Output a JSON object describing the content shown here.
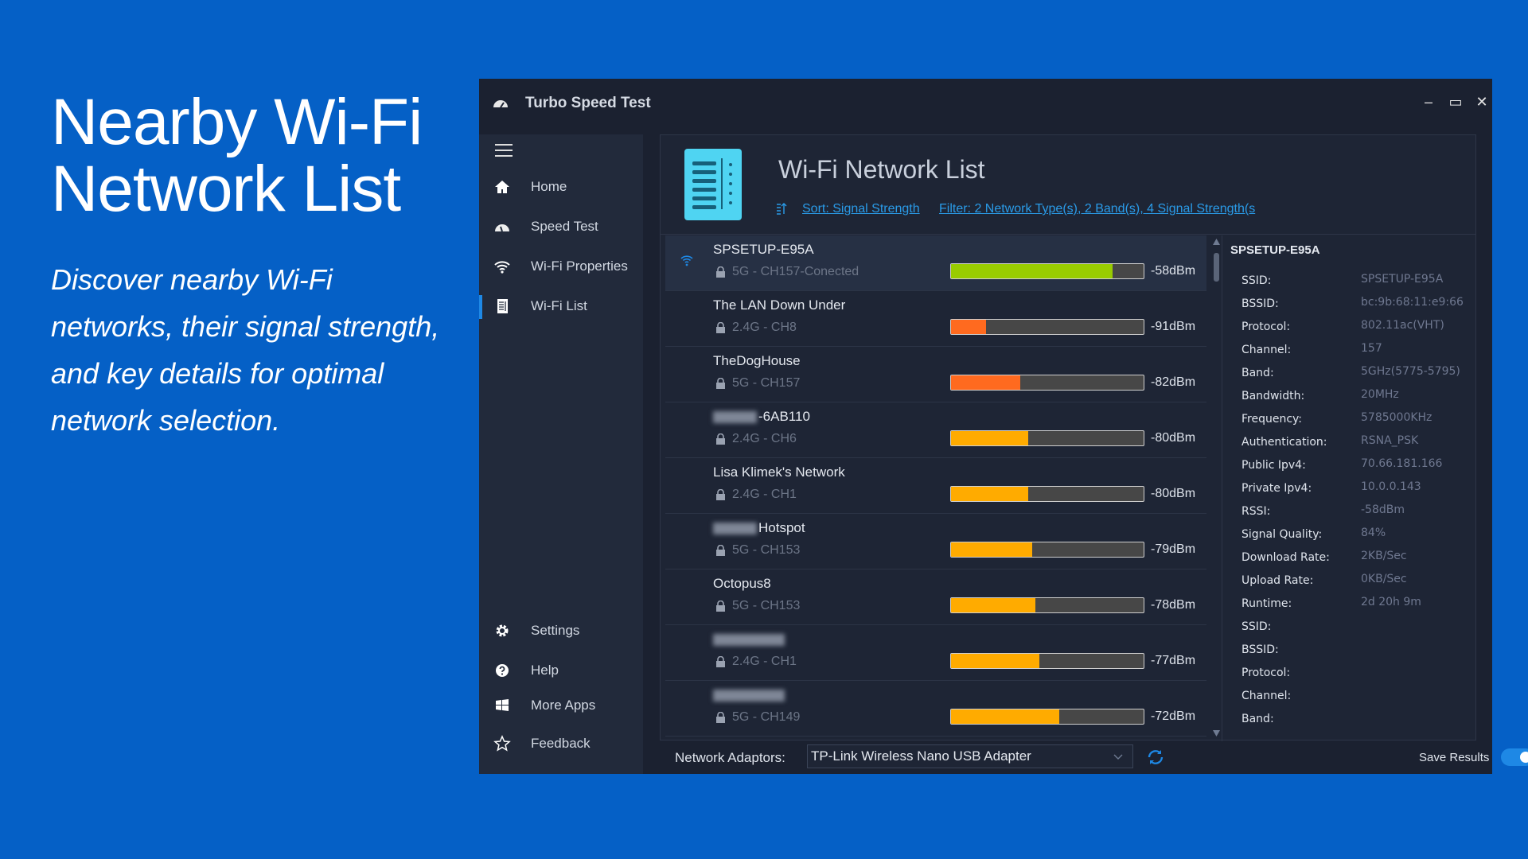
{
  "promo": {
    "title_line1": "Nearby Wi-Fi",
    "title_line2": "Network List",
    "subtitle": "Discover nearby Wi-Fi networks, their signal strength, and key details for optimal network selection."
  },
  "window": {
    "title": "Turbo Speed Test",
    "minimize": "–",
    "maximize": "▭",
    "close": "✕"
  },
  "sidebar": {
    "items": [
      {
        "label": "Home",
        "icon": "home-icon"
      },
      {
        "label": "Speed Test",
        "icon": "speedometer-icon"
      },
      {
        "label": "Wi-Fi Properties",
        "icon": "wifi-icon"
      },
      {
        "label": "Wi-Fi List",
        "icon": "list-icon",
        "active": true
      }
    ],
    "bottom_items": [
      {
        "label": "Settings",
        "icon": "gear-icon"
      },
      {
        "label": "Help",
        "icon": "help-icon"
      },
      {
        "label": "More Apps",
        "icon": "windows-icon"
      },
      {
        "label": "Feedback",
        "icon": "star-icon"
      }
    ]
  },
  "header": {
    "title": "Wi-Fi Network List",
    "sort_label": "Sort: Signal Strength",
    "filter_label": "Filter: 2 Network Type(s), 2 Band(s), 4 Signal Strength(s"
  },
  "colors": {
    "strong": "#99cc00",
    "weak": "#ff6a1f",
    "medium": "#ffab00",
    "accent": "#1e88e5"
  },
  "networks": [
    {
      "name": "SPSETUP-E95A",
      "sub": "5G - CH157-Conected",
      "dbm": "-58dBm",
      "signal": 0.84,
      "color": "#99cc00",
      "connected": true
    },
    {
      "name": "The LAN Down Under",
      "sub": "2.4G - CH8",
      "dbm": "-91dBm",
      "signal": 0.18,
      "color": "#ff6a1f"
    },
    {
      "name": "TheDogHouse",
      "sub": "5G - CH157",
      "dbm": "-82dBm",
      "signal": 0.36,
      "color": "#ff6a1f"
    },
    {
      "name": "-6AB110",
      "sub": "2.4G - CH6",
      "dbm": "-80dBm",
      "signal": 0.4,
      "color": "#ffab00",
      "blurred_prefix": true
    },
    {
      "name": "Lisa Klimek's Network",
      "sub": "2.4G - CH1",
      "dbm": "-80dBm",
      "signal": 0.4,
      "color": "#ffab00"
    },
    {
      "name": "Hotspot",
      "sub": "5G - CH153",
      "dbm": "-79dBm",
      "signal": 0.42,
      "color": "#ffab00",
      "blurred_prefix": true
    },
    {
      "name": "Octopus8",
      "sub": "5G - CH153",
      "dbm": "-78dBm",
      "signal": 0.44,
      "color": "#ffab00"
    },
    {
      "name": "",
      "sub": "2.4G - CH1",
      "dbm": "-77dBm",
      "signal": 0.46,
      "color": "#ffab00",
      "blurred_prefix": true
    },
    {
      "name": "",
      "sub": "5G - CH149",
      "dbm": "-72dBm",
      "signal": 0.56,
      "color": "#ffab00",
      "blurred_prefix": true
    }
  ],
  "details": {
    "title": "SPSETUP-E95A",
    "rows": [
      {
        "k": "SSID:",
        "v": "SPSETUP-E95A"
      },
      {
        "k": "BSSID:",
        "v": "bc:9b:68:11:e9:66"
      },
      {
        "k": "Protocol:",
        "v": "802.11ac(VHT)"
      },
      {
        "k": "Channel:",
        "v": "157"
      },
      {
        "k": "Band:",
        "v": "5GHz(5775-5795)"
      },
      {
        "k": "Bandwidth:",
        "v": "20MHz"
      },
      {
        "k": "Frequency:",
        "v": "5785000KHz"
      },
      {
        "k": "Authentication:",
        "v": "RSNA_PSK"
      },
      {
        "k": "Public Ipv4:",
        "v": "70.66.181.166"
      },
      {
        "k": "Private Ipv4:",
        "v": "10.0.0.143"
      },
      {
        "k": "RSSI:",
        "v": "-58dBm"
      },
      {
        "k": "Signal Quality:",
        "v": "84%"
      },
      {
        "k": "Download Rate:",
        "v": "2KB/Sec"
      },
      {
        "k": "Upload Rate:",
        "v": "0KB/Sec"
      },
      {
        "k": "Runtime:",
        "v": "2d 20h 9m"
      },
      {
        "k": "SSID:",
        "v": ""
      },
      {
        "k": "BSSID:",
        "v": ""
      },
      {
        "k": "Protocol:",
        "v": ""
      },
      {
        "k": "Channel:",
        "v": ""
      },
      {
        "k": "Band:",
        "v": ""
      }
    ]
  },
  "footer": {
    "adaptor_label": "Network Adaptors:",
    "adaptor_value": "TP-Link Wireless Nano USB Adapter",
    "save_label": "Save Results",
    "save_enabled": true
  }
}
